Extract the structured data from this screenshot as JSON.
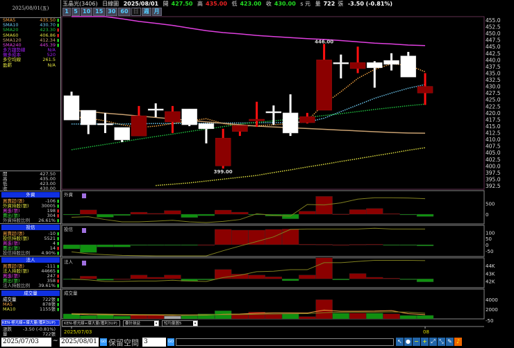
{
  "header": {
    "stock": "玉晶光(3406)",
    "chart_type": "日線圖",
    "date": "2025/08/01",
    "open_label": "開",
    "open": "427.50",
    "high_label": "高",
    "high": "435.00",
    "low_label": "低",
    "low": "423.00",
    "close_label": "收",
    "close": "430.00",
    "unit_flag": "s 元",
    "vol_label": "量",
    "volume": "722",
    "vol_unit": "張",
    "change": "-3.50 (-0.81%)"
  },
  "periods": [
    "1",
    "5",
    "10",
    "15",
    "30",
    "60",
    "日",
    "週",
    "月"
  ],
  "active_period": "日",
  "left": {
    "date": "2025/08/01(五)",
    "ma": [
      {
        "label": "SMA5",
        "value": "435.50",
        "color": "#f0a040",
        "dir": "down"
      },
      {
        "label": "SMA10",
        "value": "430.70",
        "color": "#6cc8f0",
        "dir": "down"
      },
      {
        "label": "SMA20",
        "value": "423.30",
        "color": "#20c040",
        "dir": "up"
      },
      {
        "label": "SMA60",
        "value": "406.86",
        "color": "#e0e040",
        "dir": "up"
      },
      {
        "label": "SMA120",
        "value": "412.34",
        "color": "#c8a070",
        "dir": "down"
      },
      {
        "label": "SMA240",
        "value": "445.39",
        "color": "#e040e0",
        "dir": "down"
      }
    ],
    "extra": [
      {
        "label": "多方趨勢線",
        "value": "N/A",
        "color": "#a020f0"
      },
      {
        "label": "做多成本",
        "value": "520",
        "color": "#a020f0"
      },
      {
        "label": "多空均線",
        "value": "261.5",
        "color": "#e0e040"
      },
      {
        "label": "盈虧",
        "value": "N/A",
        "color": "#e0e040"
      }
    ],
    "ohlc": [
      {
        "label": "開",
        "value": "427.50"
      },
      {
        "label": "高",
        "value": "435.00"
      },
      {
        "label": "低",
        "value": "423.00"
      },
      {
        "label": "收",
        "value": "430.00"
      }
    ],
    "sections": [
      {
        "title": "外資",
        "rows": [
          {
            "label": "買賣超(張)",
            "value": "-106",
            "lc": "#f0a040",
            "dir": "down"
          },
          {
            "label": "外資持股(張)",
            "value": "30005",
            "lc": "#e0e040",
            "dir": "down"
          },
          {
            "label": "買進(張)",
            "value": "198",
            "lc": "#e040e0",
            "dir": "up"
          },
          {
            "label": "賣出(張)",
            "value": "304",
            "lc": "#40e040",
            "dir": "up"
          },
          {
            "label": "外資持股比例",
            "value": "26.61%",
            "lc": "#aaa",
            "dir": "down"
          }
        ]
      },
      {
        "title": "投信",
        "rows": [
          {
            "label": "買賣超(張)",
            "value": "-10",
            "lc": "#f0a040",
            "dir": "down"
          },
          {
            "label": "投信持股(張)",
            "value": "5521",
            "lc": "#e0e040",
            "dir": "down"
          },
          {
            "label": "買進(張)",
            "value": "4",
            "lc": "#e040e0",
            "dir": "down"
          },
          {
            "label": "賣出(張)",
            "value": "14",
            "lc": "#40e040",
            "dir": "up"
          },
          {
            "label": "投信持股比例",
            "value": "4.90%",
            "lc": "#aaa",
            "dir": "down"
          }
        ]
      },
      {
        "title": "法人",
        "rows": [
          {
            "label": "買賣超(張)",
            "value": "-111",
            "lc": "#f0a040",
            "dir": "down"
          },
          {
            "label": "法人持股(張)",
            "value": "44665",
            "lc": "#e0e040",
            "dir": "down"
          },
          {
            "label": "買進(張)",
            "value": "247",
            "lc": "#e040e0",
            "dir": "up"
          },
          {
            "label": "賣出(張)",
            "value": "358",
            "lc": "#40e040",
            "dir": "up"
          },
          {
            "label": "法人持股比例",
            "value": "39.61%",
            "lc": "#aaa",
            "dir": "down"
          }
        ]
      },
      {
        "title": "成交量",
        "rows": [
          {
            "label": "成交量",
            "value": "722張",
            "lc": "#fff",
            "dir": "down"
          },
          {
            "label": "MA5",
            "value": "878張",
            "lc": "#f0a040",
            "dir": "down"
          },
          {
            "label": "MA10",
            "value": "1155張",
            "lc": "#e0e040",
            "dir": "down"
          }
        ]
      }
    ],
    "strategy": "KEN-極光線+爆大量(獲利3UP)",
    "change_label": "漲跌",
    "change": "-3.50 (-0.81%)",
    "vol_label": "量",
    "vol": "722張"
  },
  "colors": {
    "up": "#8b0000",
    "up_wick": "#ff1010",
    "down": "#ffffff",
    "buy": "#8b0000",
    "sell": "#109010"
  },
  "chart_data": [
    {
      "type": "candlestick",
      "panel": "price",
      "ylim": [
        392.5,
        455
      ],
      "yticks": [
        "455.0",
        "452.5",
        "450.0",
        "447.5",
        "445.0",
        "442.5",
        "440.0",
        "437.5",
        "435.0",
        "432.5",
        "430.0",
        "427.5",
        "425.0",
        "422.5",
        "420.0",
        "417.5",
        "415.0",
        "412.5",
        "410.0",
        "407.5",
        "405.0",
        "402.5",
        "400.0",
        "397.5",
        "395.0",
        "392.5"
      ],
      "x_labels": [
        {
          "index": 0,
          "text": "2025/07/03"
        },
        {
          "index": 21,
          "text": "08"
        }
      ],
      "annotations": [
        {
          "index": 15,
          "text": "446.00",
          "value": 446
        },
        {
          "index": 9,
          "text": "399.00",
          "value": 399
        }
      ],
      "ohlc": [
        [
          426.5,
          428,
          417.3,
          417.3
        ],
        [
          421,
          421,
          412,
          415.5
        ],
        [
          416,
          420,
          412.4,
          415.5
        ],
        [
          414.5,
          414.5,
          409,
          409.8
        ],
        [
          411.3,
          422.6,
          411.3,
          418.9
        ],
        [
          421.5,
          423.6,
          418.4,
          421
        ],
        [
          416.6,
          422.6,
          412.4,
          420.5
        ],
        [
          421.5,
          421.5,
          415,
          415.5
        ],
        [
          416,
          416,
          408.5,
          414
        ],
        [
          400,
          414,
          399,
          410.5
        ],
        [
          413,
          415.3,
          411.3,
          415.3
        ],
        [
          417,
          424.2,
          414.7,
          417.6
        ],
        [
          420.5,
          422.8,
          415.5,
          420
        ],
        [
          420,
          427,
          411.3,
          412.4
        ],
        [
          416.3,
          420,
          416,
          418.6
        ],
        [
          421,
          446,
          421,
          440
        ],
        [
          439,
          442,
          433,
          438.5
        ],
        [
          436.7,
          445,
          435,
          439
        ],
        [
          439,
          439.5,
          429.5,
          437
        ],
        [
          439.8,
          442.5,
          436,
          438.3
        ],
        [
          441.5,
          443,
          433.5,
          433.5
        ],
        [
          427.5,
          435,
          423,
          430
        ]
      ],
      "series": [
        {
          "name": "SMA5",
          "color": "#f0a040",
          "dash": true,
          "values": [
            418.6,
            418,
            417,
            415.5,
            414.5,
            415,
            416,
            417,
            417.8,
            416,
            415,
            415.2,
            415.5,
            416,
            417,
            423.4,
            428,
            433,
            436.4,
            438.5,
            438,
            435.5
          ]
        },
        {
          "name": "SMA10",
          "color": "#6cc8f0",
          "dash": true,
          "values": [
            415.8,
            415.8,
            415.8,
            415.8,
            415.9,
            416,
            416,
            416.1,
            416.1,
            416.2,
            416.2,
            416.3,
            416.3,
            416.4,
            416.5,
            418,
            420.5,
            423,
            425.5,
            427.5,
            429.3,
            430.7
          ]
        },
        {
          "name": "SMA20",
          "color": "#20c040",
          "dash": true,
          "values": [
            406.1,
            407.1,
            408.1,
            409.1,
            410.1,
            411.1,
            412,
            413,
            413.9,
            414.8,
            415.8,
            416.4,
            417,
            417.6,
            418.3,
            419,
            419.7,
            420.5,
            421.3,
            422,
            422.7,
            423.3
          ]
        },
        {
          "name": "SMA60",
          "color": "#e0e040",
          "dash": true,
          "values": [
            null,
            null,
            null,
            null,
            null,
            392.6,
            393.1,
            393.6,
            394.3,
            395,
            395.7,
            396.4,
            397.5,
            398.5,
            399.6,
            400.6,
            401.7,
            402.7,
            403.8,
            404.8,
            405.9,
            406.86
          ]
        },
        {
          "name": "SMA120",
          "color": "#c8a070",
          "dash": false,
          "values": [
            421,
            420.5,
            419.9,
            419.4,
            418.8,
            418.3,
            417.7,
            417.2,
            416.6,
            416.1,
            415.5,
            415,
            414.7,
            414.4,
            414.1,
            413.8,
            413.5,
            413.2,
            412.9,
            412.6,
            412.4,
            412.34
          ]
        },
        {
          "name": "SMA240",
          "color": "#e040e0",
          "dash": false,
          "values": [
            456.3,
            456.3,
            456.3,
            455.5,
            454.5,
            453.8,
            453,
            452,
            451,
            450.3,
            449.8,
            449.2,
            448.8,
            448.4,
            448,
            447.7,
            447.3,
            446.8,
            446.3,
            446,
            445.6,
            445.39
          ]
        }
      ]
    },
    {
      "type": "bar",
      "panel": "外資",
      "title": "外資",
      "yticks": [
        "500",
        "0"
      ],
      "values": [
        -10,
        200,
        -140,
        -60,
        95,
        40,
        170,
        -150,
        -70,
        190,
        95,
        -20,
        -85,
        -210,
        140,
        820,
        10,
        210,
        265,
        30,
        -30,
        -106
      ],
      "line": [
        -140,
        -117,
        -245,
        -350,
        -350,
        -320,
        -277,
        -350,
        -383,
        -330,
        -245,
        20,
        -53,
        -85,
        447,
        425,
        521,
        692,
        756,
        756,
        745,
        713
      ]
    },
    {
      "type": "bar",
      "panel": "投信",
      "title": "投信",
      "yticks": [
        "100",
        "50",
        "0",
        "-50"
      ],
      "values": [
        -34,
        -64,
        -19,
        -19,
        -5,
        -5,
        -5,
        -3,
        0,
        125,
        119,
        119,
        125,
        128,
        4,
        3,
        0,
        3,
        4,
        -3,
        -5,
        -10
      ],
      "line": [
        -58,
        -74,
        -81,
        -87,
        -89,
        -91,
        -91,
        -91,
        -91,
        -49,
        -11,
        26,
        64,
        125,
        128,
        128,
        128,
        128,
        134,
        128,
        128,
        128
      ]
    },
    {
      "type": "bar",
      "panel": "法人",
      "title": "法人",
      "yticks": [
        "44K",
        "43K",
        "42K"
      ],
      "values": [
        -5,
        100,
        -50,
        0,
        145,
        60,
        145,
        -90,
        -40,
        350,
        180,
        145,
        75,
        -70,
        145,
        790,
        -40,
        200,
        60,
        30,
        -30,
        -111
      ],
      "line_k": [
        42.3,
        42.2,
        42,
        42,
        42.05,
        42.05,
        42.15,
        42.05,
        42,
        42.5,
        42.8,
        43.25,
        43.3,
        43.5,
        43.5,
        44.4,
        44.4,
        44.55,
        44.7,
        44.7,
        44.7,
        44.67
      ]
    },
    {
      "type": "bar",
      "panel": "成交量",
      "title": "成交量",
      "yticks": [
        "4000",
        "2000"
      ],
      "values": [
        1050,
        710,
        950,
        570,
        810,
        810,
        570,
        670,
        1050,
        1670,
        950,
        1430,
        1100,
        1100,
        480,
        3950,
        1190,
        1190,
        1190,
        1050,
        710,
        722
      ],
      "colors": [
        "sell",
        "sell",
        "sell",
        "sell",
        "buy",
        "buy",
        "flat",
        "sell",
        "sell",
        "sell",
        "buy",
        "buy",
        "buy",
        "sell",
        "buy",
        "buy",
        "sell",
        "buy",
        "sell",
        "buy",
        "sell",
        "sell"
      ],
      "ma5": [
        1000,
        900,
        880,
        820,
        810,
        780,
        740,
        760,
        780,
        950,
        1000,
        1160,
        1250,
        1250,
        1210,
        1810,
        1580,
        1580,
        1600,
        1720,
        1070,
        878
      ],
      "ma10": [
        1100,
        1050,
        1000,
        950,
        900,
        880,
        850,
        840,
        850,
        880,
        900,
        950,
        1000,
        1050,
        1080,
        1280,
        1380,
        1400,
        1400,
        1420,
        1400,
        1155
      ]
    }
  ],
  "toolbar": {
    "strategy": "KEN-極光線+爆大量(獲利3UP)",
    "option1": "疊計損益",
    "option2": "短均量圖5",
    "axis_extra": "-50",
    "start": "2025/07/03",
    "tilde": "~",
    "end": "2025/08/01",
    "go": "GO",
    "reserve_label": "保留空間",
    "reserve": "3"
  }
}
